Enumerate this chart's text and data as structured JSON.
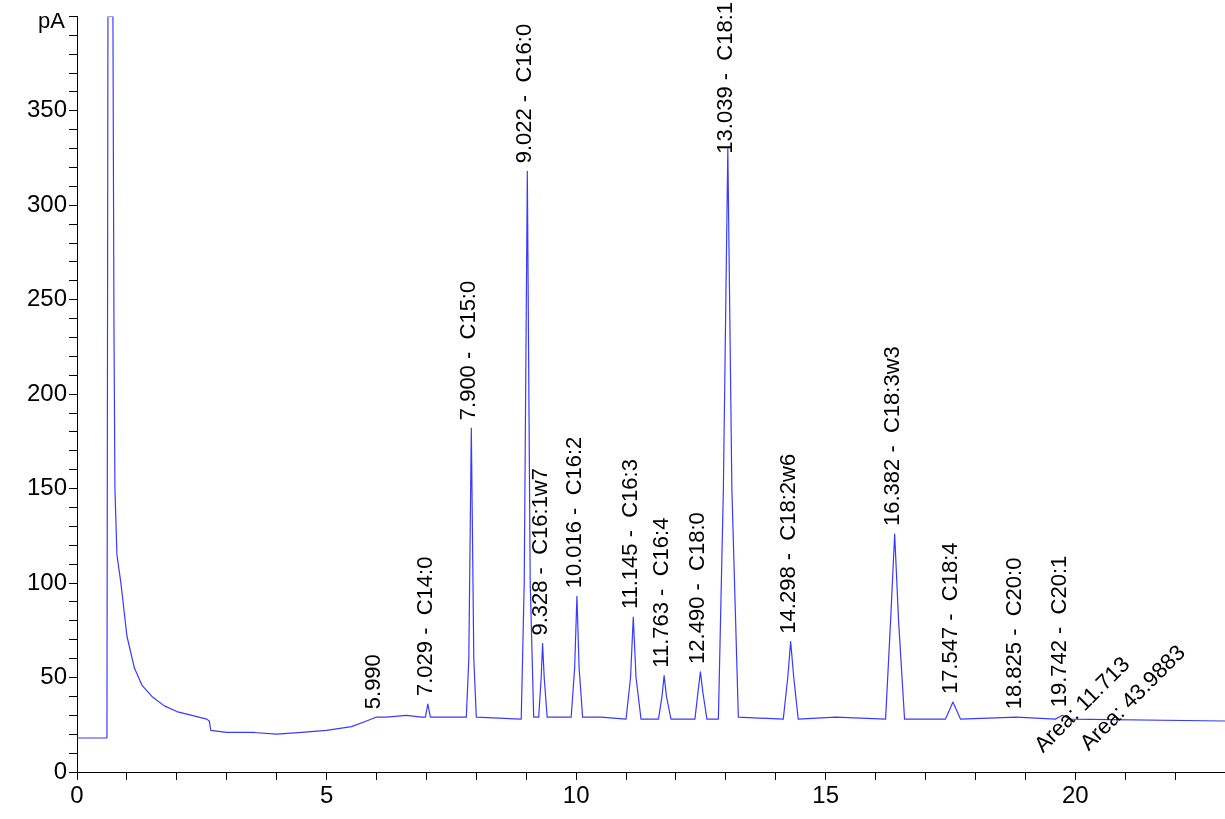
{
  "chart_data": {
    "type": "line",
    "ylabel": "pA",
    "xlim": [
      0,
      23
    ],
    "ylim": [
      0,
      400
    ],
    "xticks": [
      0,
      {
        "value": 1,
        "label": null
      },
      {
        "value": 2,
        "label": null
      },
      {
        "value": 3,
        "label": null
      },
      {
        "value": 4,
        "label": null
      },
      5,
      {
        "value": 6,
        "label": null
      },
      {
        "value": 7,
        "label": null
      },
      {
        "value": 8,
        "label": null
      },
      {
        "value": 9,
        "label": null
      },
      10,
      {
        "value": 11,
        "label": null
      },
      {
        "value": 12,
        "label": null
      },
      {
        "value": 13,
        "label": null
      },
      {
        "value": 14,
        "label": null
      },
      15,
      {
        "value": 16,
        "label": null
      },
      {
        "value": 17,
        "label": null
      },
      {
        "value": 18,
        "label": null
      },
      {
        "value": 19,
        "label": null
      },
      20,
      {
        "value": 21,
        "label": null
      },
      {
        "value": 22,
        "label": null
      }
    ],
    "yticks": [
      0,
      {
        "value": 10,
        "label": null
      },
      {
        "value": 20,
        "label": null
      },
      {
        "value": 30,
        "label": null
      },
      {
        "value": 40,
        "label": null
      },
      50,
      {
        "value": 60,
        "label": null
      },
      {
        "value": 70,
        "label": null
      },
      {
        "value": 80,
        "label": null
      },
      {
        "value": 90,
        "label": null
      },
      100,
      {
        "value": 110,
        "label": null
      },
      {
        "value": 120,
        "label": null
      },
      {
        "value": 130,
        "label": null
      },
      {
        "value": 140,
        "label": null
      },
      150,
      {
        "value": 160,
        "label": null
      },
      {
        "value": 170,
        "label": null
      },
      {
        "value": 180,
        "label": null
      },
      {
        "value": 190,
        "label": null
      },
      200,
      {
        "value": 210,
        "label": null
      },
      {
        "value": 220,
        "label": null
      },
      {
        "value": 230,
        "label": null
      },
      {
        "value": 240,
        "label": null
      },
      250,
      {
        "value": 260,
        "label": null
      },
      {
        "value": 270,
        "label": null
      },
      {
        "value": 280,
        "label": null
      },
      {
        "value": 290,
        "label": null
      },
      300,
      {
        "value": 310,
        "label": null
      },
      {
        "value": 320,
        "label": null
      },
      {
        "value": 330,
        "label": null
      },
      {
        "value": 340,
        "label": null
      },
      350,
      {
        "value": 360,
        "label": null
      },
      {
        "value": 370,
        "label": null
      },
      {
        "value": 380,
        "label": null
      },
      {
        "value": 390,
        "label": null
      },
      {
        "value": 400,
        "label": null
      }
    ],
    "grid": false,
    "legend": false,
    "marker": "none",
    "line_style": "solid",
    "series": [
      {
        "color": "#3a3aff",
        "x": [
          0,
          0.6,
          0.62,
          0.72,
          0.74,
          0.76,
          0.8,
          0.88,
          1.0,
          1.15,
          1.3,
          1.5,
          1.75,
          2.0,
          2.3,
          2.6,
          2.65,
          2.68,
          3.0,
          3.5,
          4.0,
          4.5,
          5.0,
          5.5,
          5.8,
          5.99,
          6.2,
          6.6,
          6.9,
          6.98,
          7.029,
          7.08,
          7.8,
          7.85,
          7.9,
          7.95,
          8.0,
          8.9,
          8.96,
          9.022,
          9.08,
          9.15,
          9.25,
          9.3,
          9.328,
          9.36,
          9.42,
          9.9,
          9.97,
          10.016,
          10.06,
          10.13,
          10.5,
          11.0,
          11.09,
          11.145,
          11.2,
          11.3,
          11.65,
          11.72,
          11.763,
          11.81,
          11.9,
          12.38,
          12.44,
          12.49,
          12.54,
          12.62,
          12.85,
          12.95,
          13.039,
          13.12,
          13.25,
          14.15,
          14.24,
          14.298,
          14.36,
          14.45,
          15.2,
          16.2,
          16.3,
          16.382,
          16.46,
          16.58,
          17.4,
          17.5,
          17.547,
          17.6,
          17.7,
          18.825,
          19.6,
          19.742,
          19.9,
          23
        ],
        "values": [
          18,
          18,
          400,
          400,
          240,
          150,
          115,
          100,
          72,
          55,
          46,
          40,
          35,
          32,
          30,
          28,
          27,
          22,
          21,
          21,
          20,
          21,
          22,
          24,
          27,
          29,
          29,
          30,
          29,
          29,
          36,
          29,
          29,
          60,
          182,
          60,
          29,
          28,
          100,
          318,
          100,
          29,
          29,
          50,
          68,
          50,
          29,
          29,
          55,
          93,
          55,
          29,
          29,
          28,
          50,
          82,
          50,
          28,
          28,
          40,
          51,
          40,
          28,
          28,
          42,
          53,
          42,
          28,
          28,
          150,
          330,
          150,
          29,
          28,
          50,
          69,
          50,
          28,
          29,
          28,
          80,
          126,
          80,
          28,
          28,
          34,
          37,
          34,
          28,
          29,
          28,
          30,
          28,
          27
        ]
      }
    ],
    "annotations": [
      {
        "text": "5.990",
        "x": 5.99,
        "y": 29
      },
      {
        "text": "7.029 -  C14:0",
        "x": 7.029,
        "y": 36
      },
      {
        "text": "7.900 -  C15:0",
        "x": 7.9,
        "y": 182
      },
      {
        "text": "9.022 -  C16:0",
        "x": 9.022,
        "y": 318
      },
      {
        "text": "9.328 -  C16:1w7",
        "x": 9.328,
        "y": 68
      },
      {
        "text": "10.016 -  C16:2",
        "x": 10.016,
        "y": 93
      },
      {
        "text": "11.145 -  C16:3",
        "x": 11.145,
        "y": 82
      },
      {
        "text": "11.763 -  C16:4",
        "x": 11.763,
        "y": 51
      },
      {
        "text": "12.490 -  C18:0",
        "x": 12.49,
        "y": 53
      },
      {
        "text": "13.039 -  C18:1",
        "x": 13.039,
        "y": 330
      },
      {
        "text": "14.298 -  C18:2w6",
        "x": 14.298,
        "y": 69
      },
      {
        "text": "16.382 -  C18:3w3",
        "x": 16.382,
        "y": 126
      },
      {
        "text": "17.547 -  C18:4",
        "x": 17.547,
        "y": 37
      },
      {
        "text": "18.825 -  C20:0",
        "x": 18.825,
        "y": 29
      },
      {
        "text": "19.742 -  C20:1",
        "x": 19.742,
        "y": 30
      },
      {
        "text": "Area: 11.713",
        "x": 18.825,
        "y": 29
      },
      {
        "text": "Area: 43.9883",
        "x": 19.742,
        "y": 30
      }
    ]
  }
}
